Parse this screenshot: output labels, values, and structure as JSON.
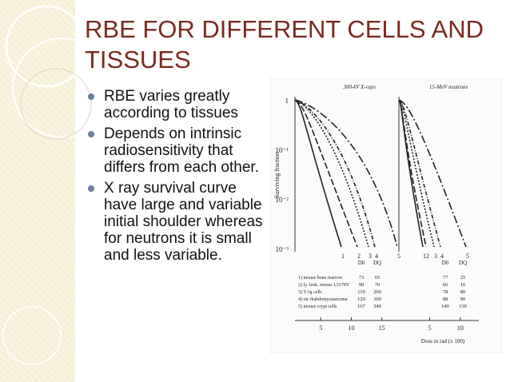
{
  "slide": {
    "title": "RBE FOR DIFFERENT CELLS AND TISSUES",
    "bullets": [
      "RBE varies greatly according to tissues",
      "Depends on intrinsic radiosensitivity that differs from each other.",
      "X ray survival curve have large and variable initial shoulder whereas for neutrons it is small and less variable."
    ]
  },
  "colors": {
    "title": "#7a2a1f",
    "decor_band": "#f6efd6",
    "bullet": "#6b7fa0"
  },
  "chart_data": {
    "type": "line",
    "panels": [
      {
        "title": "300-kV X-rays",
        "curve_labels": [
          "1",
          "2",
          "3",
          "4",
          "5"
        ],
        "x_ticks": [
          "5",
          "10",
          "15"
        ]
      },
      {
        "title": "15-MeV neutrons",
        "curve_labels": [
          "2",
          "1",
          "3",
          "4",
          "5"
        ],
        "x_ticks": [
          "5",
          "10"
        ]
      }
    ],
    "ylabel": "Surviving fraction",
    "y_ticks": [
      "1",
      "10⁻¹",
      "10⁻²",
      "10⁻³"
    ],
    "xlabel": "Dose in rad (x 100)",
    "y_scale": "log",
    "table": {
      "xray_headers": [
        "D0",
        "DQ"
      ],
      "neutron_headers": [
        "D0",
        "DQ"
      ],
      "rows": [
        {
          "label": "1) mouse bone marrow",
          "xray_D0": "73",
          "xray_DQ": "65",
          "neutron_D0": "77",
          "neutron_DQ": "25"
        },
        {
          "label": "2) ly. leuk. mouse L5178Y",
          "xray_D0": "98",
          "xray_DQ": "70",
          "neutron_D0": "66",
          "neutron_DQ": "10"
        },
        {
          "label": "3) T-1g cells",
          "xray_D0": "110",
          "xray_DQ": "260",
          "neutron_D0": "78",
          "neutron_DQ": "80"
        },
        {
          "label": "4) rat rhabdomyosarcoma",
          "xray_D0": "120",
          "xray_DQ": "300",
          "neutron_D0": "88",
          "neutron_DQ": "90"
        },
        {
          "label": "5) mouse crypt cells",
          "xray_D0": "167",
          "xray_DQ": "340",
          "neutron_D0": "140",
          "neutron_DQ": "130"
        }
      ]
    }
  }
}
